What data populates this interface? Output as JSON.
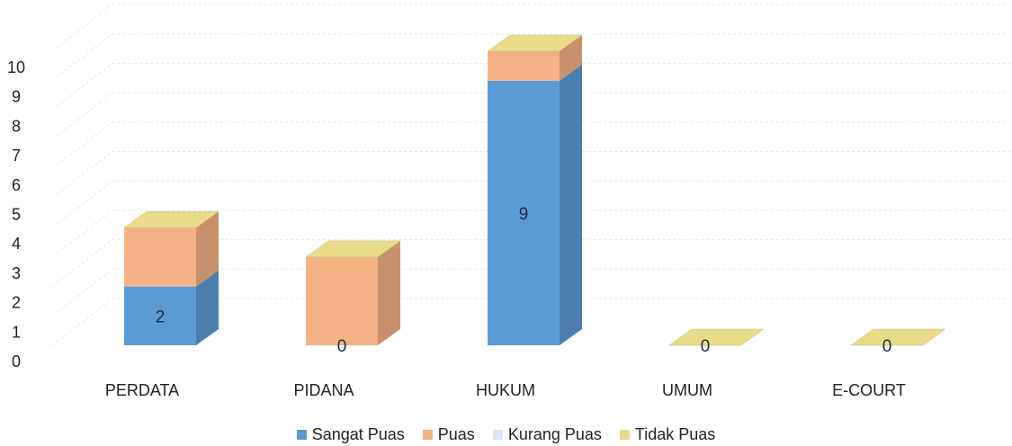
{
  "chart_data": {
    "type": "bar",
    "stacked": true,
    "three_d": true,
    "categories": [
      "PERDATA",
      "PIDANA",
      "HUKUM",
      "UMUM",
      "E-COURT"
    ],
    "series": [
      {
        "name": "Sangat Puas",
        "values": [
          2,
          0,
          9,
          0,
          0
        ],
        "color": "#5b9bd5"
      },
      {
        "name": "Puas",
        "values": [
          2,
          3,
          1,
          0,
          0
        ],
        "color": "#f4b183"
      },
      {
        "name": "Kurang Puas",
        "values": [
          0,
          0,
          0,
          0,
          0
        ],
        "color": "#dbe5f1"
      },
      {
        "name": "Tidak Puas",
        "values": [
          0,
          0,
          0,
          0,
          0
        ],
        "color": "#e8dc8a"
      }
    ],
    "data_labels": [
      "2",
      "0",
      "9",
      "0",
      "0"
    ],
    "yticks": [
      "0",
      "1",
      "2",
      "3",
      "4",
      "5",
      "6",
      "7",
      "8",
      "9",
      "10"
    ],
    "ylim": [
      0,
      10
    ],
    "grid": true,
    "legend_position": "bottom"
  }
}
